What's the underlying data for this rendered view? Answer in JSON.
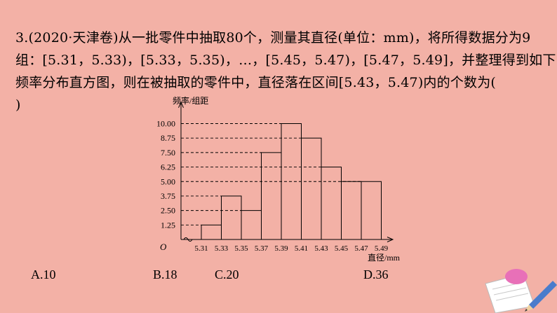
{
  "question": {
    "lines": [
      "3.(2020·天津卷)从一批零件中抽取80个，测量其直径(单位：mm)，将所得数据分为9",
      "组：[5.31，5.33)，[5.33，5.35)，…，[5.45，5.47)，[5.47，5.49]，并整理得到如下",
      "频率分布直方图，则在被抽取的零件中，直径落在区间[5.43，5.47)内的个数为(",
      ")"
    ]
  },
  "options": [
    {
      "label": "A.10"
    },
    {
      "label": "B.18"
    },
    {
      "label": "C.20"
    },
    {
      "label": "D.36"
    }
  ],
  "chart_data": {
    "type": "bar",
    "title": "",
    "ylabel": "频率/组距",
    "xlabel": "直径/mm",
    "origin_label": "O",
    "x_ticks": [
      "5.31",
      "5.33",
      "5.35",
      "5.37",
      "5.39",
      "5.41",
      "5.43",
      "5.45",
      "5.47",
      "5.49"
    ],
    "y_ticks": [
      "1.25",
      "2.50",
      "3.75",
      "5.00",
      "6.25",
      "7.50",
      "8.75",
      "10.00"
    ],
    "bins": [
      [
        5.31,
        5.33
      ],
      [
        5.33,
        5.35
      ],
      [
        5.35,
        5.37
      ],
      [
        5.37,
        5.39
      ],
      [
        5.39,
        5.41
      ],
      [
        5.41,
        5.43
      ],
      [
        5.43,
        5.45
      ],
      [
        5.45,
        5.47
      ],
      [
        5.47,
        5.49
      ]
    ],
    "values": [
      1.25,
      3.75,
      2.5,
      7.5,
      10.0,
      8.75,
      6.25,
      5.0,
      5.0
    ],
    "ylim": [
      0,
      11.25
    ],
    "grid": false,
    "dashed_reference_lines": true
  },
  "decoration": {
    "icon": "pencil-and-paper-icon",
    "colors": {
      "paper": "#ffffff",
      "pencil": "#4a7ccc",
      "blob": "#e870b8"
    }
  },
  "colors": {
    "background": "#f3b1a6",
    "ink": "#000000"
  }
}
